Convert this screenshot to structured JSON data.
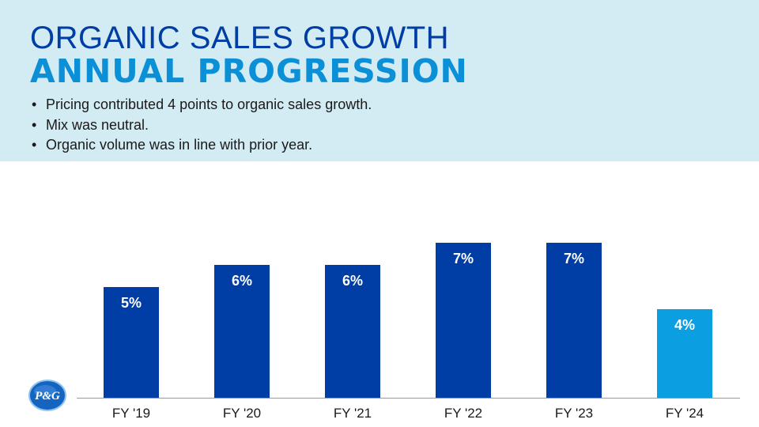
{
  "header": {
    "title_line1": "ORGANIC SALES GROWTH",
    "title_line2": "ANNUAL PROGRESSION",
    "bullets": [
      "Pricing contributed 4 points to organic sales growth.",
      "Mix was neutral.",
      "Organic volume was in line with prior year."
    ]
  },
  "logo": {
    "text": "P&G"
  },
  "colors": {
    "bar_primary": "#003da5",
    "bar_highlight": "#0b9ee0",
    "header_bg": "#d3ebf3"
  },
  "chart_data": {
    "type": "bar",
    "categories": [
      "FY '19",
      "FY '20",
      "FY '21",
      "FY '22",
      "FY '23",
      "FY '24"
    ],
    "values": [
      5,
      6,
      6,
      7,
      7,
      4
    ],
    "data_labels": [
      "5%",
      "6%",
      "6%",
      "7%",
      "7%",
      "4%"
    ],
    "highlight_index": 5,
    "ylim": [
      0,
      7
    ],
    "grid": false,
    "legend": "none"
  }
}
